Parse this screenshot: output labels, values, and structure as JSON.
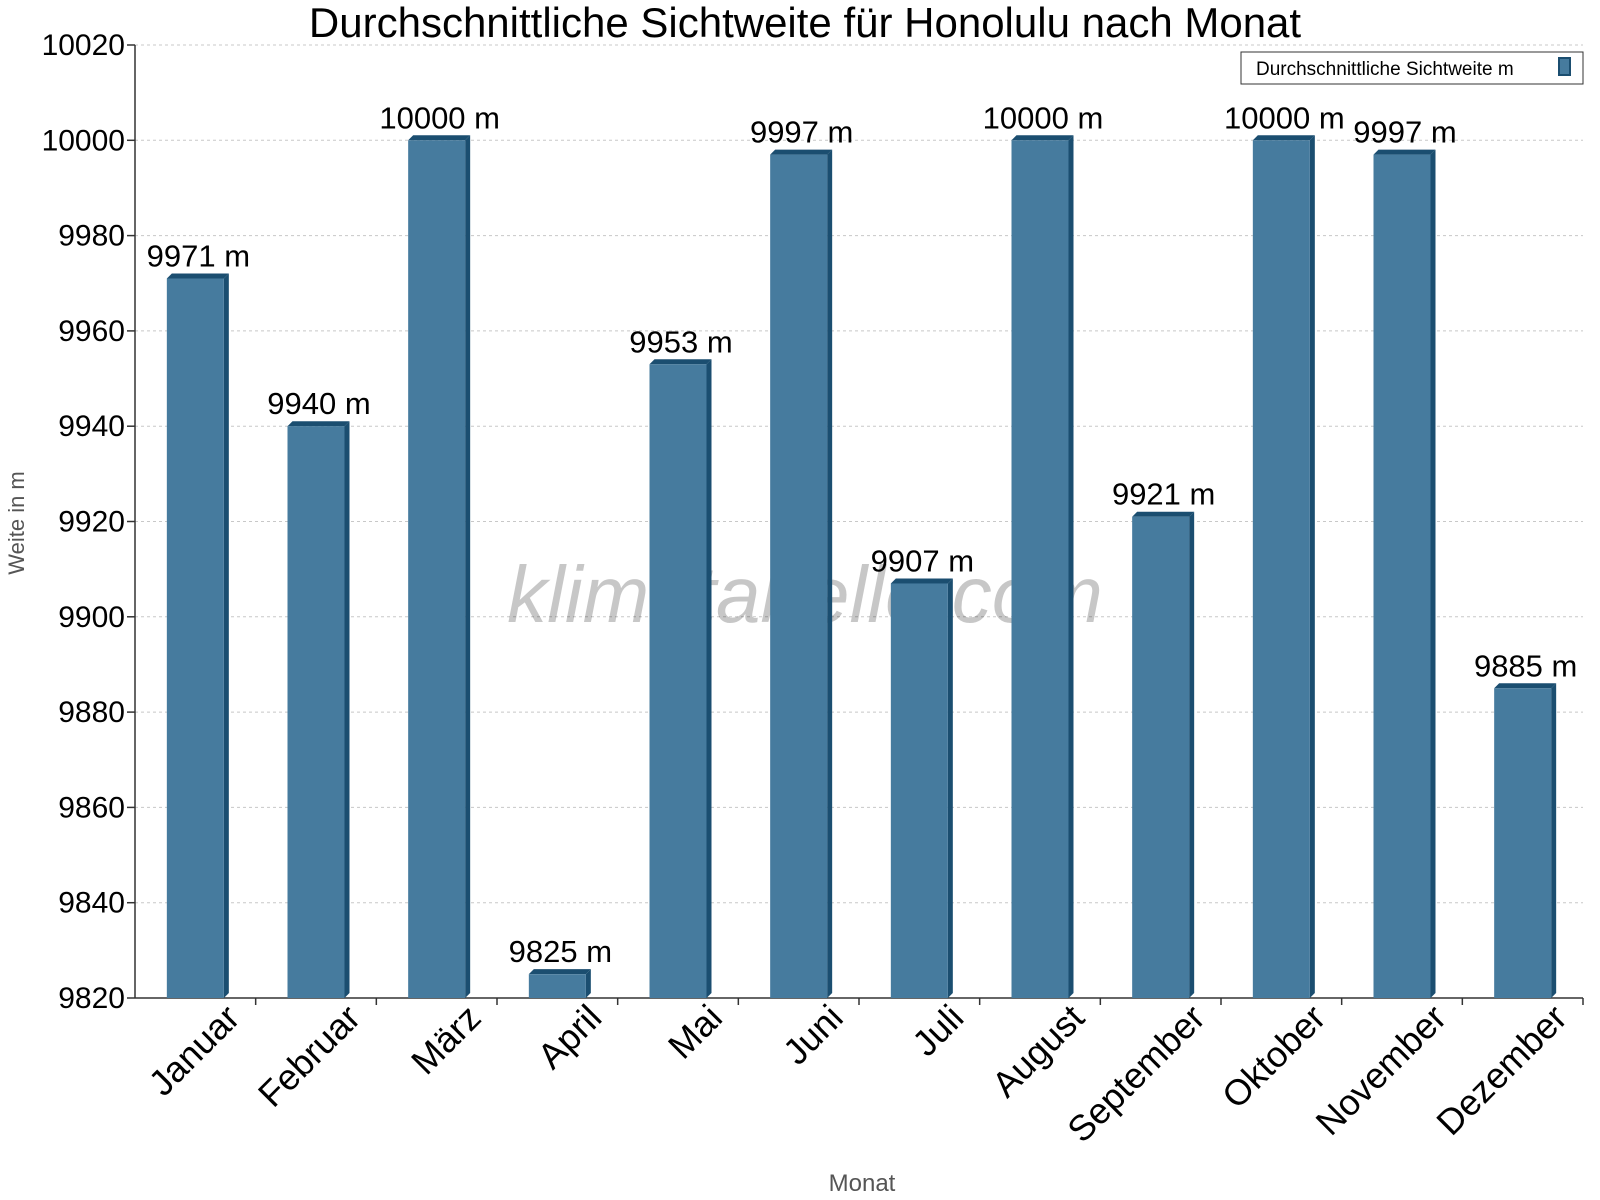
{
  "chart_data": {
    "type": "bar",
    "title": "Durchschnittliche Sichtweite für Honolulu nach Monat",
    "xlabel": "Monat",
    "ylabel": "Weite in m",
    "categories": [
      "Januar",
      "Februar",
      "März",
      "April",
      "Mai",
      "Juni",
      "Juli",
      "August",
      "September",
      "Oktober",
      "November",
      "Dezember"
    ],
    "series": [
      {
        "name": "Durchschnittliche Sichtweite m",
        "values": [
          9971,
          9940,
          10000,
          9825,
          9953,
          9997,
          9907,
          10000,
          9921,
          10000,
          9997,
          9885
        ],
        "value_labels": [
          "9971 m",
          "9940 m",
          "10000 m",
          "9825 m",
          "9953 m",
          "9997 m",
          "9907 m",
          "10000 m",
          "9921 m",
          "10000 m",
          "9997 m",
          "9885 m"
        ]
      }
    ],
    "ylim": [
      9820,
      10020
    ],
    "yticks": [
      9820,
      9840,
      9860,
      9880,
      9900,
      9920,
      9940,
      9960,
      9980,
      10000,
      10020
    ],
    "grid": true,
    "legend": "top-right",
    "colors": {
      "bar": "#467b9e",
      "bar_side": "#1b4e70",
      "grid": "#c8c8c8",
      "axis": "#333333"
    }
  },
  "watermark": "klimatabelle.com"
}
